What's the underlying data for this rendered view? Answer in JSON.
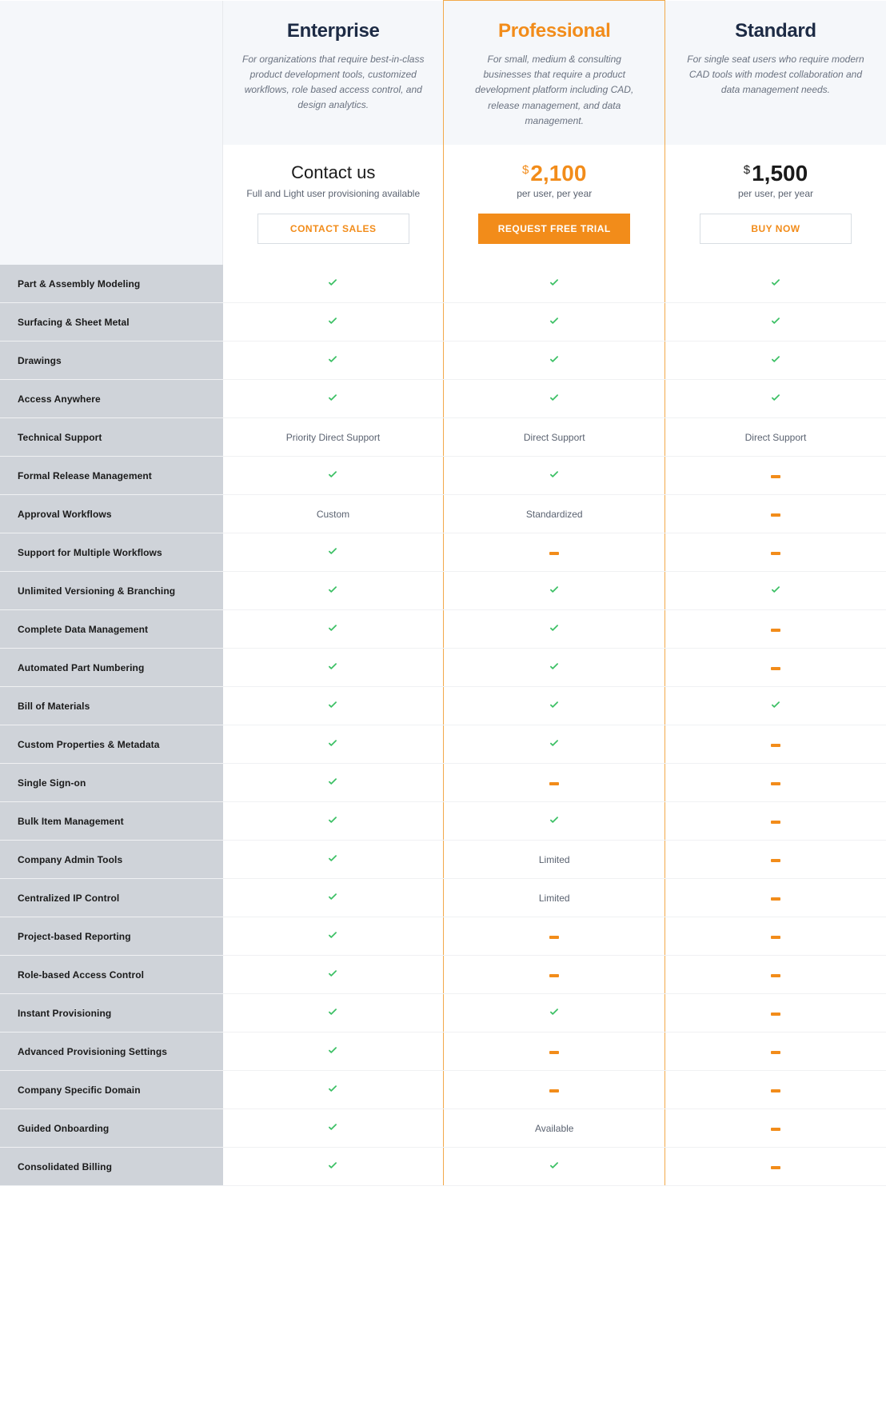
{
  "colors": {
    "orange": "#f28c1a",
    "navy": "#1d2b45",
    "green": "#3cc065",
    "header_bg": "#f5f7fa",
    "label_bg": "#cfd3d9",
    "text_muted": "#6a7280",
    "border": "#e7e9ec",
    "highlight_border": "#f2a94a"
  },
  "plans": [
    {
      "key": "enterprise",
      "title": "Enterprise",
      "title_color": "#1d2b45",
      "desc": "For organizations that require best-in-class product development tools, customized workflows, role based access control, and design analytics.",
      "price_mode": "contact",
      "contact_title": "Contact us",
      "contact_sub": "Full and Light user provisioning available",
      "cta_label": "CONTACT SALES",
      "cta_style": "outline"
    },
    {
      "key": "professional",
      "title": "Professional",
      "title_color": "#f28c1a",
      "desc": "For small, medium & consulting businesses that require a product development platform including CAD, release management, and data management.",
      "price_mode": "price",
      "price_currency": "$",
      "price_value": "2,100",
      "price_color": "#f28c1a",
      "price_sub": "per user, per year",
      "cta_label": "REQUEST FREE TRIAL",
      "cta_style": "solid",
      "highlighted": true
    },
    {
      "key": "standard",
      "title": "Standard",
      "title_color": "#1d2b45",
      "desc": "For single seat users who require modern CAD tools with modest collaboration and data management needs.",
      "price_mode": "price",
      "price_currency": "$",
      "price_value": "1,500",
      "price_color": "#1a1a1a",
      "price_sub": "per user, per year",
      "cta_label": "BUY NOW",
      "cta_style": "outline"
    }
  ],
  "features": [
    {
      "label": "Part & Assembly Modeling",
      "cells": [
        "check",
        "check",
        "check"
      ]
    },
    {
      "label": "Surfacing & Sheet Metal",
      "cells": [
        "check",
        "check",
        "check"
      ]
    },
    {
      "label": "Drawings",
      "cells": [
        "check",
        "check",
        "check"
      ]
    },
    {
      "label": "Access Anywhere",
      "cells": [
        "check",
        "check",
        "check"
      ]
    },
    {
      "label": "Technical Support",
      "cells": [
        "Priority Direct Support",
        "Direct Support",
        "Direct Support"
      ]
    },
    {
      "label": "Formal Release Management",
      "cells": [
        "check",
        "check",
        "dash"
      ]
    },
    {
      "label": "Approval Workflows",
      "cells": [
        "Custom",
        "Standardized",
        "dash"
      ]
    },
    {
      "label": "Support for Multiple Workflows",
      "cells": [
        "check",
        "dash",
        "dash"
      ]
    },
    {
      "label": "Unlimited Versioning & Branching",
      "cells": [
        "check",
        "check",
        "check"
      ]
    },
    {
      "label": "Complete Data Management",
      "cells": [
        "check",
        "check",
        "dash"
      ]
    },
    {
      "label": "Automated Part Numbering",
      "cells": [
        "check",
        "check",
        "dash"
      ]
    },
    {
      "label": "Bill of Materials",
      "cells": [
        "check",
        "check",
        "check"
      ]
    },
    {
      "label": "Custom Properties & Metadata",
      "cells": [
        "check",
        "check",
        "dash"
      ]
    },
    {
      "label": "Single Sign-on",
      "cells": [
        "check",
        "dash",
        "dash"
      ]
    },
    {
      "label": "Bulk Item Management",
      "cells": [
        "check",
        "check",
        "dash"
      ]
    },
    {
      "label": "Company Admin Tools",
      "cells": [
        "check",
        "Limited",
        "dash"
      ]
    },
    {
      "label": "Centralized IP Control",
      "cells": [
        "check",
        "Limited",
        "dash"
      ]
    },
    {
      "label": "Project-based Reporting",
      "cells": [
        "check",
        "dash",
        "dash"
      ]
    },
    {
      "label": "Role-based Access Control",
      "cells": [
        "check",
        "dash",
        "dash"
      ]
    },
    {
      "label": "Instant Provisioning",
      "cells": [
        "check",
        "check",
        "dash"
      ]
    },
    {
      "label": "Advanced Provisioning Settings",
      "cells": [
        "check",
        "dash",
        "dash"
      ]
    },
    {
      "label": "Company Specific Domain",
      "cells": [
        "check",
        "dash",
        "dash"
      ]
    },
    {
      "label": "Guided Onboarding",
      "cells": [
        "check",
        "Available",
        "dash"
      ]
    },
    {
      "label": "Consolidated Billing",
      "cells": [
        "check",
        "check",
        "dash"
      ]
    }
  ]
}
